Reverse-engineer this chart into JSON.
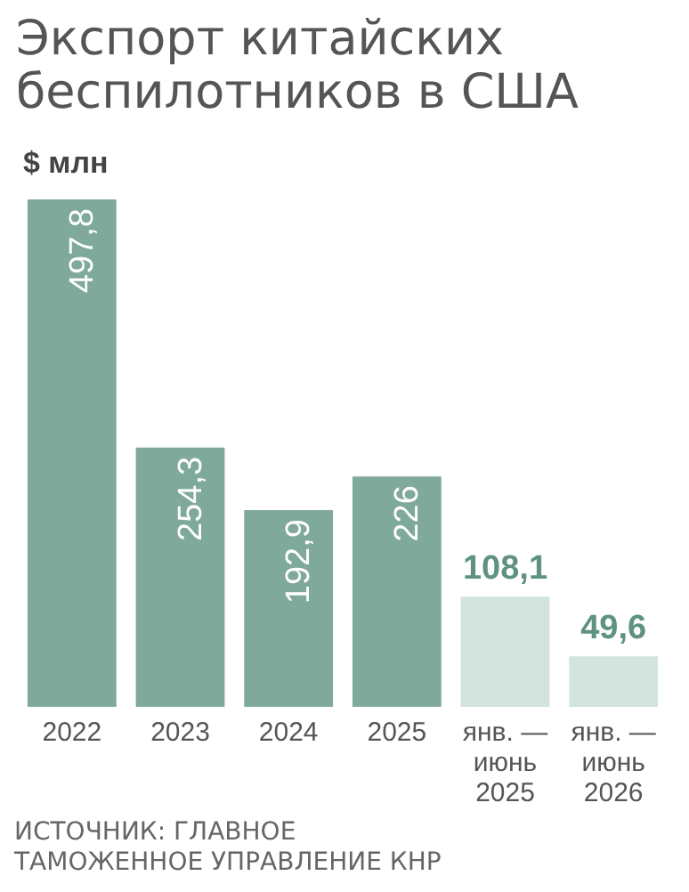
{
  "chart_data": {
    "type": "bar",
    "title": "Экспорт китайских\nбеспилотников в США",
    "subtitle": "$ млн",
    "categories": [
      "2022",
      "2023",
      "2024",
      "2025",
      "янв. —\nиюнь\n2025",
      "янв. —\nиюнь\n2026"
    ],
    "values": [
      497.8,
      254.3,
      192.9,
      226,
      108.1,
      49.6
    ],
    "colors": [
      "#7fa99b",
      "#7fa99b",
      "#7fa99b",
      "#7fa99b",
      "#d3e3dd",
      "#d3e3dd"
    ],
    "value_labels": [
      "497,8",
      "254,3",
      "192,9",
      "226",
      "108,1",
      "49,6"
    ],
    "annotations": [
      "ИСТОЧНИК: ГЛАВНОЕ\nТАМОЖЕННОЕ УПРАВЛЕНИЕ КНР"
    ]
  }
}
